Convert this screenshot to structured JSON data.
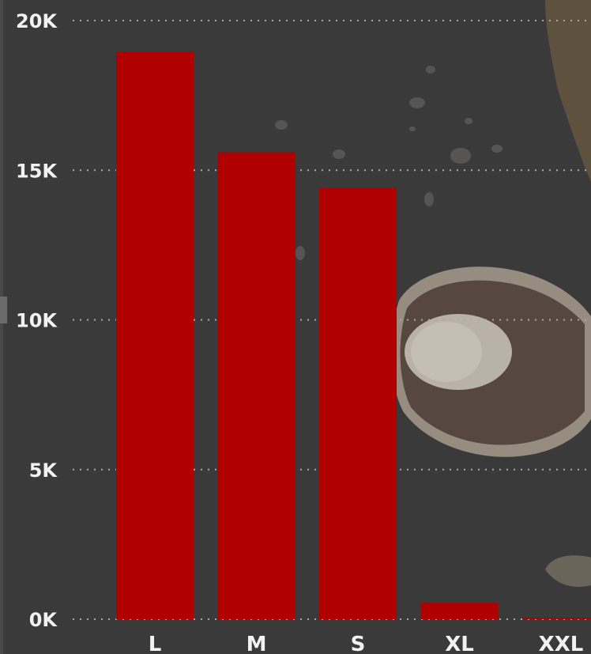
{
  "chart_data": {
    "type": "bar",
    "categories": [
      "L",
      "M",
      "S",
      "XL",
      "XXL"
    ],
    "values": [
      18950,
      15600,
      14400,
      550,
      50
    ],
    "ylim": [
      0,
      20000
    ],
    "yticks": [
      0,
      5000,
      10000,
      15000,
      20000
    ],
    "ytick_labels": [
      "0K",
      "5K",
      "10K",
      "15K",
      "20K"
    ],
    "grid": true,
    "bar_color": "#b00000",
    "background_color": "#3b3a3b"
  }
}
